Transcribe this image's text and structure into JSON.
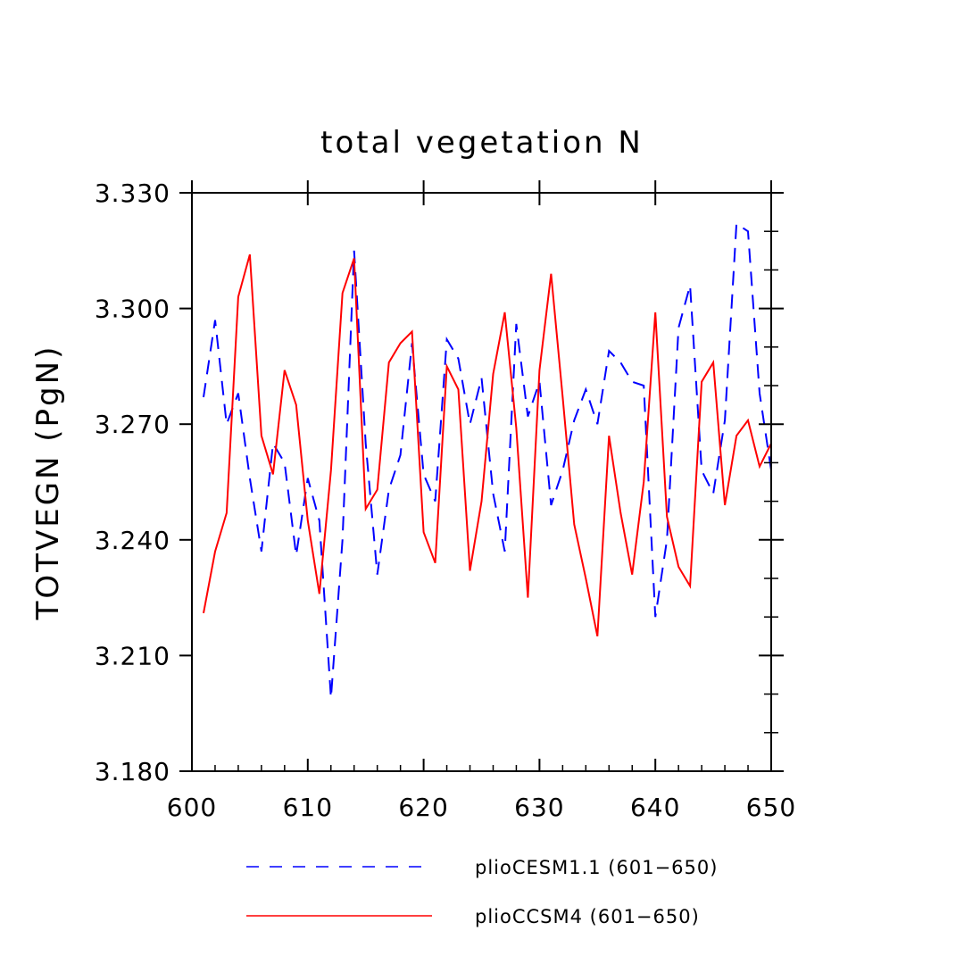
{
  "chart_data": {
    "type": "line",
    "title": "total vegetation N",
    "xlabel": "",
    "ylabel": "TOTVEGN   (PgN)",
    "xlim": [
      600,
      650
    ],
    "ylim": [
      3.18,
      3.33
    ],
    "x_ticks": [
      "600",
      "610",
      "620",
      "630",
      "640",
      "650"
    ],
    "y_ticks": [
      "3.180",
      "3.210",
      "3.240",
      "3.270",
      "3.300",
      "3.330"
    ],
    "x_tick_values": [
      600,
      610,
      620,
      630,
      640,
      650
    ],
    "y_tick_values": [
      3.18,
      3.21,
      3.24,
      3.27,
      3.3,
      3.33
    ],
    "legend_position": "bottom",
    "x": [
      601,
      602,
      603,
      604,
      605,
      606,
      607,
      608,
      609,
      610,
      611,
      612,
      613,
      614,
      615,
      616,
      617,
      618,
      619,
      620,
      621,
      622,
      623,
      624,
      625,
      626,
      627,
      628,
      629,
      630,
      631,
      632,
      633,
      634,
      635,
      636,
      637,
      638,
      639,
      640,
      641,
      642,
      643,
      644,
      645,
      646,
      647,
      648,
      649,
      650
    ],
    "series": [
      {
        "name": "plioCESM1.1 (601−650)",
        "color": "#0000ff",
        "dash": "dashed",
        "values": [
          3.277,
          3.297,
          3.27,
          3.278,
          3.256,
          3.237,
          3.265,
          3.26,
          3.236,
          3.256,
          3.245,
          3.199,
          3.24,
          3.315,
          3.265,
          3.231,
          3.253,
          3.262,
          3.291,
          3.257,
          3.25,
          3.292,
          3.287,
          3.27,
          3.282,
          3.252,
          3.237,
          3.296,
          3.272,
          3.281,
          3.249,
          3.258,
          3.271,
          3.279,
          3.27,
          3.289,
          3.286,
          3.281,
          3.28,
          3.22,
          3.24,
          3.295,
          3.306,
          3.258,
          3.252,
          3.271,
          3.322,
          3.32,
          3.278,
          3.258
        ]
      },
      {
        "name": "plioCCSM4 (601−650)",
        "color": "#ff0000",
        "dash": "solid",
        "values": [
          3.221,
          3.237,
          3.247,
          3.303,
          3.314,
          3.267,
          3.257,
          3.284,
          3.275,
          3.245,
          3.226,
          3.258,
          3.304,
          3.313,
          3.248,
          3.253,
          3.286,
          3.291,
          3.294,
          3.242,
          3.234,
          3.285,
          3.279,
          3.232,
          3.25,
          3.283,
          3.299,
          3.269,
          3.225,
          3.284,
          3.309,
          3.277,
          3.244,
          3.23,
          3.215,
          3.267,
          3.247,
          3.231,
          3.255,
          3.299,
          3.246,
          3.233,
          3.228,
          3.281,
          3.286,
          3.249,
          3.267,
          3.271,
          3.259,
          3.265
        ]
      }
    ]
  }
}
